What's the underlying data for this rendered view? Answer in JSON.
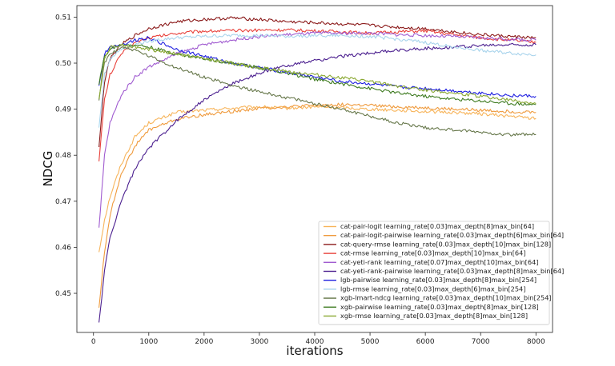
{
  "chart_data": {
    "type": "line",
    "title": "",
    "xlabel": "iterations",
    "ylabel": "NDCG",
    "xlim": [
      -300,
      8300
    ],
    "ylim": [
      0.4415,
      0.5125
    ],
    "xticks": [
      0,
      1000,
      2000,
      3000,
      4000,
      5000,
      6000,
      7000,
      8000
    ],
    "yticks": [
      0.45,
      0.46,
      0.47,
      0.48,
      0.49,
      0.5,
      0.51
    ],
    "ytick_labels": [
      "0.45",
      "0.46",
      "0.47",
      "0.48",
      "0.49",
      "0.50",
      "0.51"
    ],
    "grid": false,
    "legend_position": "lower-right",
    "x": [
      100,
      200,
      300,
      500,
      750,
      1000,
      1500,
      2000,
      2500,
      3000,
      3500,
      4000,
      4500,
      5000,
      5500,
      6000,
      6500,
      7000,
      7500,
      8000
    ],
    "series": [
      {
        "name": "cat-pair-logit learning_rate[0.03]max_depth[8]max_bin[64]",
        "color": "#f7b45a",
        "values": [
          0.459,
          0.466,
          0.471,
          0.478,
          0.484,
          0.487,
          0.4893,
          0.4898,
          0.4902,
          0.4905,
          0.4902,
          0.4905,
          0.4903,
          0.49,
          0.4898,
          0.4895,
          0.4893,
          0.489,
          0.4885,
          0.488
        ]
      },
      {
        "name": "cat-pair-logit-pairwise learning_rate[0.03]max_depth[6]max_bin[64]",
        "color": "#ef9a3c",
        "values": [
          0.447,
          0.459,
          0.467,
          0.476,
          0.482,
          0.4855,
          0.4878,
          0.4888,
          0.4895,
          0.4902,
          0.4905,
          0.4908,
          0.491,
          0.4908,
          0.4905,
          0.4903,
          0.49,
          0.4898,
          0.4895,
          0.4893
        ]
      },
      {
        "name": "cat-query-rmse learning_rate[0.03]max_depth[10]max_bin[128]",
        "color": "#8b1a1a",
        "values": [
          0.482,
          0.496,
          0.501,
          0.504,
          0.506,
          0.5075,
          0.509,
          0.5095,
          0.5098,
          0.5095,
          0.509,
          0.5088,
          0.5085,
          0.5082,
          0.5078,
          0.5075,
          0.5068,
          0.5062,
          0.5058,
          0.5055
        ]
      },
      {
        "name": "cat-rmse learning_rate[0.03]max_depth[10]max_bin[64]",
        "color": "#e8403a",
        "values": [
          0.479,
          0.492,
          0.4975,
          0.502,
          0.5045,
          0.5055,
          0.5065,
          0.507,
          0.507,
          0.5072,
          0.5072,
          0.507,
          0.5068,
          0.5065,
          0.5068,
          0.507,
          0.5062,
          0.5055,
          0.505,
          0.5045
        ]
      },
      {
        "name": "cat-yeti-rank learning_rate[0.07]max_depth[10]max_bin[64]",
        "color": "#a05bd0",
        "values": [
          0.464,
          0.48,
          0.487,
          0.493,
          0.497,
          0.4992,
          0.502,
          0.504,
          0.505,
          0.5058,
          0.5062,
          0.5065,
          0.5065,
          0.5065,
          0.5062,
          0.506,
          0.5058,
          0.5055,
          0.5052,
          0.505
        ]
      },
      {
        "name": "cat-yeti-rank-pairwise learning_rate[0.03]max_depth[8]max_bin[64]",
        "color": "#4b1f8f",
        "values": [
          0.4435,
          0.455,
          0.462,
          0.47,
          0.477,
          0.4815,
          0.4875,
          0.492,
          0.4955,
          0.4978,
          0.4995,
          0.5005,
          0.5015,
          0.5022,
          0.5028,
          0.5032,
          0.5035,
          0.5038,
          0.504,
          0.504
        ]
      },
      {
        "name": "lgb-pairwise learning_rate[0.03]max_depth[8]max_bin[254]",
        "color": "#1f1fe0",
        "values": [
          0.495,
          0.502,
          0.5035,
          0.504,
          0.505,
          0.5055,
          0.503,
          0.5015,
          0.5,
          0.499,
          0.498,
          0.497,
          0.496,
          0.4955,
          0.4948,
          0.4945,
          0.494,
          0.4935,
          0.493,
          0.4928
        ]
      },
      {
        "name": "lgb-rmse learning_rate[0.03]max_depth[6]max_bin[254]",
        "color": "#a9d4ec",
        "values": [
          0.486,
          0.4975,
          0.501,
          0.503,
          0.504,
          0.5048,
          0.5055,
          0.5058,
          0.506,
          0.506,
          0.5058,
          0.506,
          0.506,
          0.5058,
          0.5052,
          0.5045,
          0.5035,
          0.5028,
          0.5022,
          0.5018
        ]
      },
      {
        "name": "xgb-lmart-ndcg learning_rate[0.03]max_depth[10]max_bin[254]",
        "color": "#66774a",
        "values": [
          0.492,
          0.5,
          0.502,
          0.5035,
          0.5028,
          0.5015,
          0.499,
          0.497,
          0.4952,
          0.4938,
          0.4925,
          0.4912,
          0.49,
          0.4885,
          0.487,
          0.486,
          0.4855,
          0.485,
          0.4845,
          0.4845
        ]
      },
      {
        "name": "xgb-pairwise learning_rate[0.03]max_depth[8]max_bin[128]",
        "color": "#3d7a1f",
        "values": [
          0.4955,
          0.5015,
          0.503,
          0.504,
          0.504,
          0.5035,
          0.502,
          0.501,
          0.5,
          0.499,
          0.4978,
          0.4965,
          0.4955,
          0.4945,
          0.4935,
          0.4928,
          0.4922,
          0.4918,
          0.4913,
          0.491
        ]
      },
      {
        "name": "xgb-rmse learning_rate[0.03]max_depth[8]max_bin[128]",
        "color": "#8aa832",
        "values": [
          0.4925,
          0.501,
          0.5035,
          0.504,
          0.5035,
          0.503,
          0.502,
          0.501,
          0.5,
          0.499,
          0.4982,
          0.4975,
          0.4968,
          0.496,
          0.495,
          0.4942,
          0.4935,
          0.4928,
          0.492,
          0.4912
        ]
      }
    ]
  }
}
